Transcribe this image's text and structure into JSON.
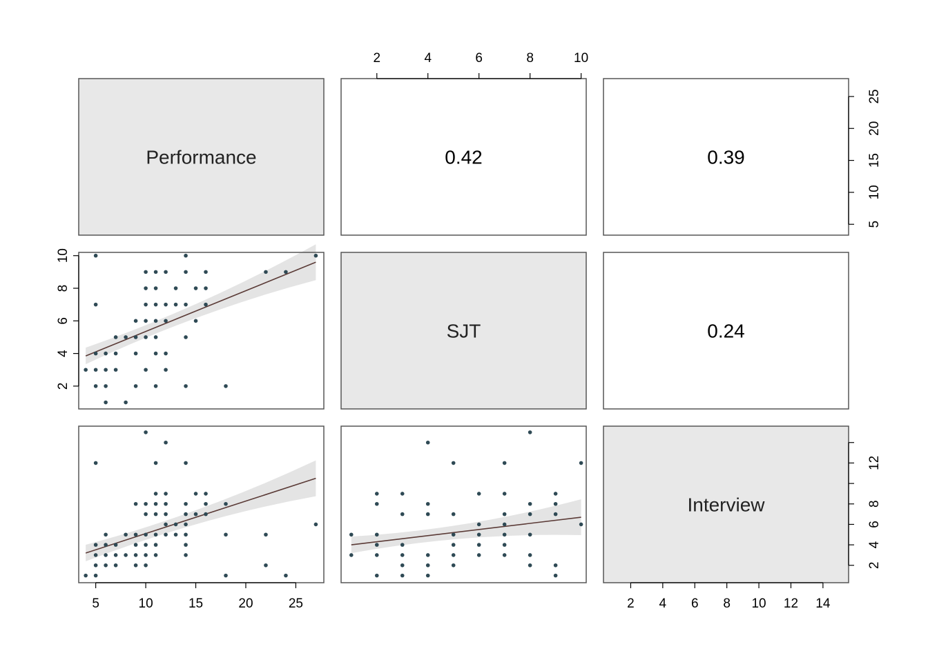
{
  "chart_data": {
    "type": "scatter",
    "kind": "pairs-plot-matrix",
    "variables": [
      "Performance",
      "SJT",
      "Interview"
    ],
    "diagonal_fill": "#e8e8e8",
    "point_color": "#2f4a55",
    "fit_line_color": "#5a3a36",
    "ci_band_color": "#e4e4e4",
    "correlations": [
      {
        "row": 0,
        "col": 1,
        "label": "0.42"
      },
      {
        "row": 0,
        "col": 2,
        "label": "0.39"
      },
      {
        "row": 1,
        "col": 2,
        "label": "0.24"
      }
    ],
    "axes": {
      "Performance": {
        "range": [
          3.3,
          27.8
        ],
        "ticks": [
          "5",
          "10",
          "15",
          "20",
          "25"
        ]
      },
      "SJT": {
        "range": [
          0.6,
          10.2
        ],
        "ticks": [
          "2",
          "4",
          "6",
          "8",
          "10"
        ]
      },
      "Interview": {
        "range": [
          0.3,
          15.6
        ],
        "ticks": [
          "2",
          "4",
          "6",
          "8",
          "10",
          "12",
          "14"
        ]
      },
      "Interview_right_ticks": [
        "2",
        "4",
        "6",
        "8",
        "12"
      ]
    },
    "scatter_panels": [
      {
        "row": 1,
        "col": 0,
        "x": "Performance",
        "y": "SJT",
        "fit": {
          "x0": 4,
          "y0": 3.85,
          "x1": 27,
          "y1": 9.6
        },
        "points": [
          [
            4,
            3
          ],
          [
            5,
            4
          ],
          [
            5,
            3
          ],
          [
            5,
            2
          ],
          [
            5,
            7
          ],
          [
            5,
            10
          ],
          [
            6,
            4
          ],
          [
            6,
            3
          ],
          [
            6,
            2
          ],
          [
            6,
            1
          ],
          [
            7,
            5
          ],
          [
            7,
            4
          ],
          [
            7,
            3
          ],
          [
            8,
            5
          ],
          [
            8,
            1
          ],
          [
            9,
            6
          ],
          [
            9,
            5
          ],
          [
            9,
            4
          ],
          [
            9,
            2
          ],
          [
            10,
            9
          ],
          [
            10,
            8
          ],
          [
            10,
            7
          ],
          [
            10,
            6
          ],
          [
            10,
            5
          ],
          [
            10,
            3
          ],
          [
            11,
            9
          ],
          [
            11,
            8
          ],
          [
            11,
            7
          ],
          [
            11,
            6
          ],
          [
            11,
            5
          ],
          [
            11,
            4
          ],
          [
            11,
            2
          ],
          [
            12,
            9
          ],
          [
            12,
            7
          ],
          [
            12,
            6
          ],
          [
            12,
            4
          ],
          [
            12,
            3
          ],
          [
            13,
            8
          ],
          [
            13,
            7
          ],
          [
            14,
            10
          ],
          [
            14,
            9
          ],
          [
            14,
            7
          ],
          [
            14,
            5
          ],
          [
            14,
            2
          ],
          [
            15,
            8
          ],
          [
            15,
            6
          ],
          [
            16,
            9
          ],
          [
            16,
            8
          ],
          [
            16,
            7
          ],
          [
            18,
            2
          ],
          [
            22,
            9
          ],
          [
            24,
            9
          ],
          [
            27,
            10
          ]
        ]
      },
      {
        "row": 2,
        "col": 0,
        "x": "Performance",
        "y": "Interview",
        "fit": {
          "x0": 4,
          "y0": 3.2,
          "x1": 27,
          "y1": 10.5
        },
        "points": [
          [
            4,
            1
          ],
          [
            5,
            12
          ],
          [
            5,
            4
          ],
          [
            5,
            3
          ],
          [
            5,
            2
          ],
          [
            5,
            1
          ],
          [
            6,
            5
          ],
          [
            6,
            4
          ],
          [
            6,
            3
          ],
          [
            6,
            2
          ],
          [
            7,
            4
          ],
          [
            7,
            3
          ],
          [
            7,
            2
          ],
          [
            8,
            5
          ],
          [
            8,
            3
          ],
          [
            9,
            8
          ],
          [
            9,
            5
          ],
          [
            9,
            4
          ],
          [
            9,
            3
          ],
          [
            9,
            2
          ],
          [
            10,
            15
          ],
          [
            10,
            8
          ],
          [
            10,
            7
          ],
          [
            10,
            5
          ],
          [
            10,
            4
          ],
          [
            10,
            3
          ],
          [
            10,
            2
          ],
          [
            11,
            12
          ],
          [
            11,
            9
          ],
          [
            11,
            8
          ],
          [
            11,
            7
          ],
          [
            11,
            5
          ],
          [
            11,
            4
          ],
          [
            11,
            3
          ],
          [
            12,
            14
          ],
          [
            12,
            9
          ],
          [
            12,
            8
          ],
          [
            12,
            7
          ],
          [
            12,
            6
          ],
          [
            12,
            5
          ],
          [
            13,
            6
          ],
          [
            13,
            5
          ],
          [
            14,
            12
          ],
          [
            14,
            8
          ],
          [
            14,
            7
          ],
          [
            14,
            6
          ],
          [
            14,
            5
          ],
          [
            14,
            4
          ],
          [
            14,
            3
          ],
          [
            15,
            9
          ],
          [
            15,
            7
          ],
          [
            16,
            9
          ],
          [
            16,
            8
          ],
          [
            16,
            7
          ],
          [
            18,
            8
          ],
          [
            18,
            5
          ],
          [
            18,
            1
          ],
          [
            22,
            5
          ],
          [
            22,
            2
          ],
          [
            24,
            1
          ],
          [
            27,
            6
          ]
        ]
      },
      {
        "row": 2,
        "col": 1,
        "x": "SJT",
        "y": "Interview",
        "fit": {
          "x0": 1,
          "y0": 4.0,
          "x1": 10,
          "y1": 6.7
        },
        "points": [
          [
            1,
            5
          ],
          [
            1,
            3
          ],
          [
            2,
            9
          ],
          [
            2,
            8
          ],
          [
            2,
            5
          ],
          [
            2,
            4
          ],
          [
            2,
            3
          ],
          [
            2,
            1
          ],
          [
            3,
            9
          ],
          [
            3,
            7
          ],
          [
            3,
            4
          ],
          [
            3,
            3
          ],
          [
            3,
            2
          ],
          [
            3,
            1
          ],
          [
            4,
            14
          ],
          [
            4,
            8
          ],
          [
            4,
            7
          ],
          [
            4,
            3
          ],
          [
            4,
            2
          ],
          [
            4,
            1
          ],
          [
            5,
            12
          ],
          [
            5,
            7
          ],
          [
            5,
            5
          ],
          [
            5,
            4
          ],
          [
            5,
            3
          ],
          [
            5,
            2
          ],
          [
            6,
            9
          ],
          [
            6,
            6
          ],
          [
            6,
            5
          ],
          [
            6,
            4
          ],
          [
            6,
            3
          ],
          [
            7,
            12
          ],
          [
            7,
            9
          ],
          [
            7,
            7
          ],
          [
            7,
            6
          ],
          [
            7,
            5
          ],
          [
            7,
            4
          ],
          [
            7,
            3
          ],
          [
            8,
            15
          ],
          [
            8,
            8
          ],
          [
            8,
            7
          ],
          [
            8,
            5
          ],
          [
            8,
            3
          ],
          [
            8,
            2
          ],
          [
            9,
            9
          ],
          [
            9,
            8
          ],
          [
            9,
            7
          ],
          [
            9,
            2
          ],
          [
            9,
            1
          ],
          [
            10,
            12
          ],
          [
            10,
            6
          ]
        ]
      }
    ]
  }
}
